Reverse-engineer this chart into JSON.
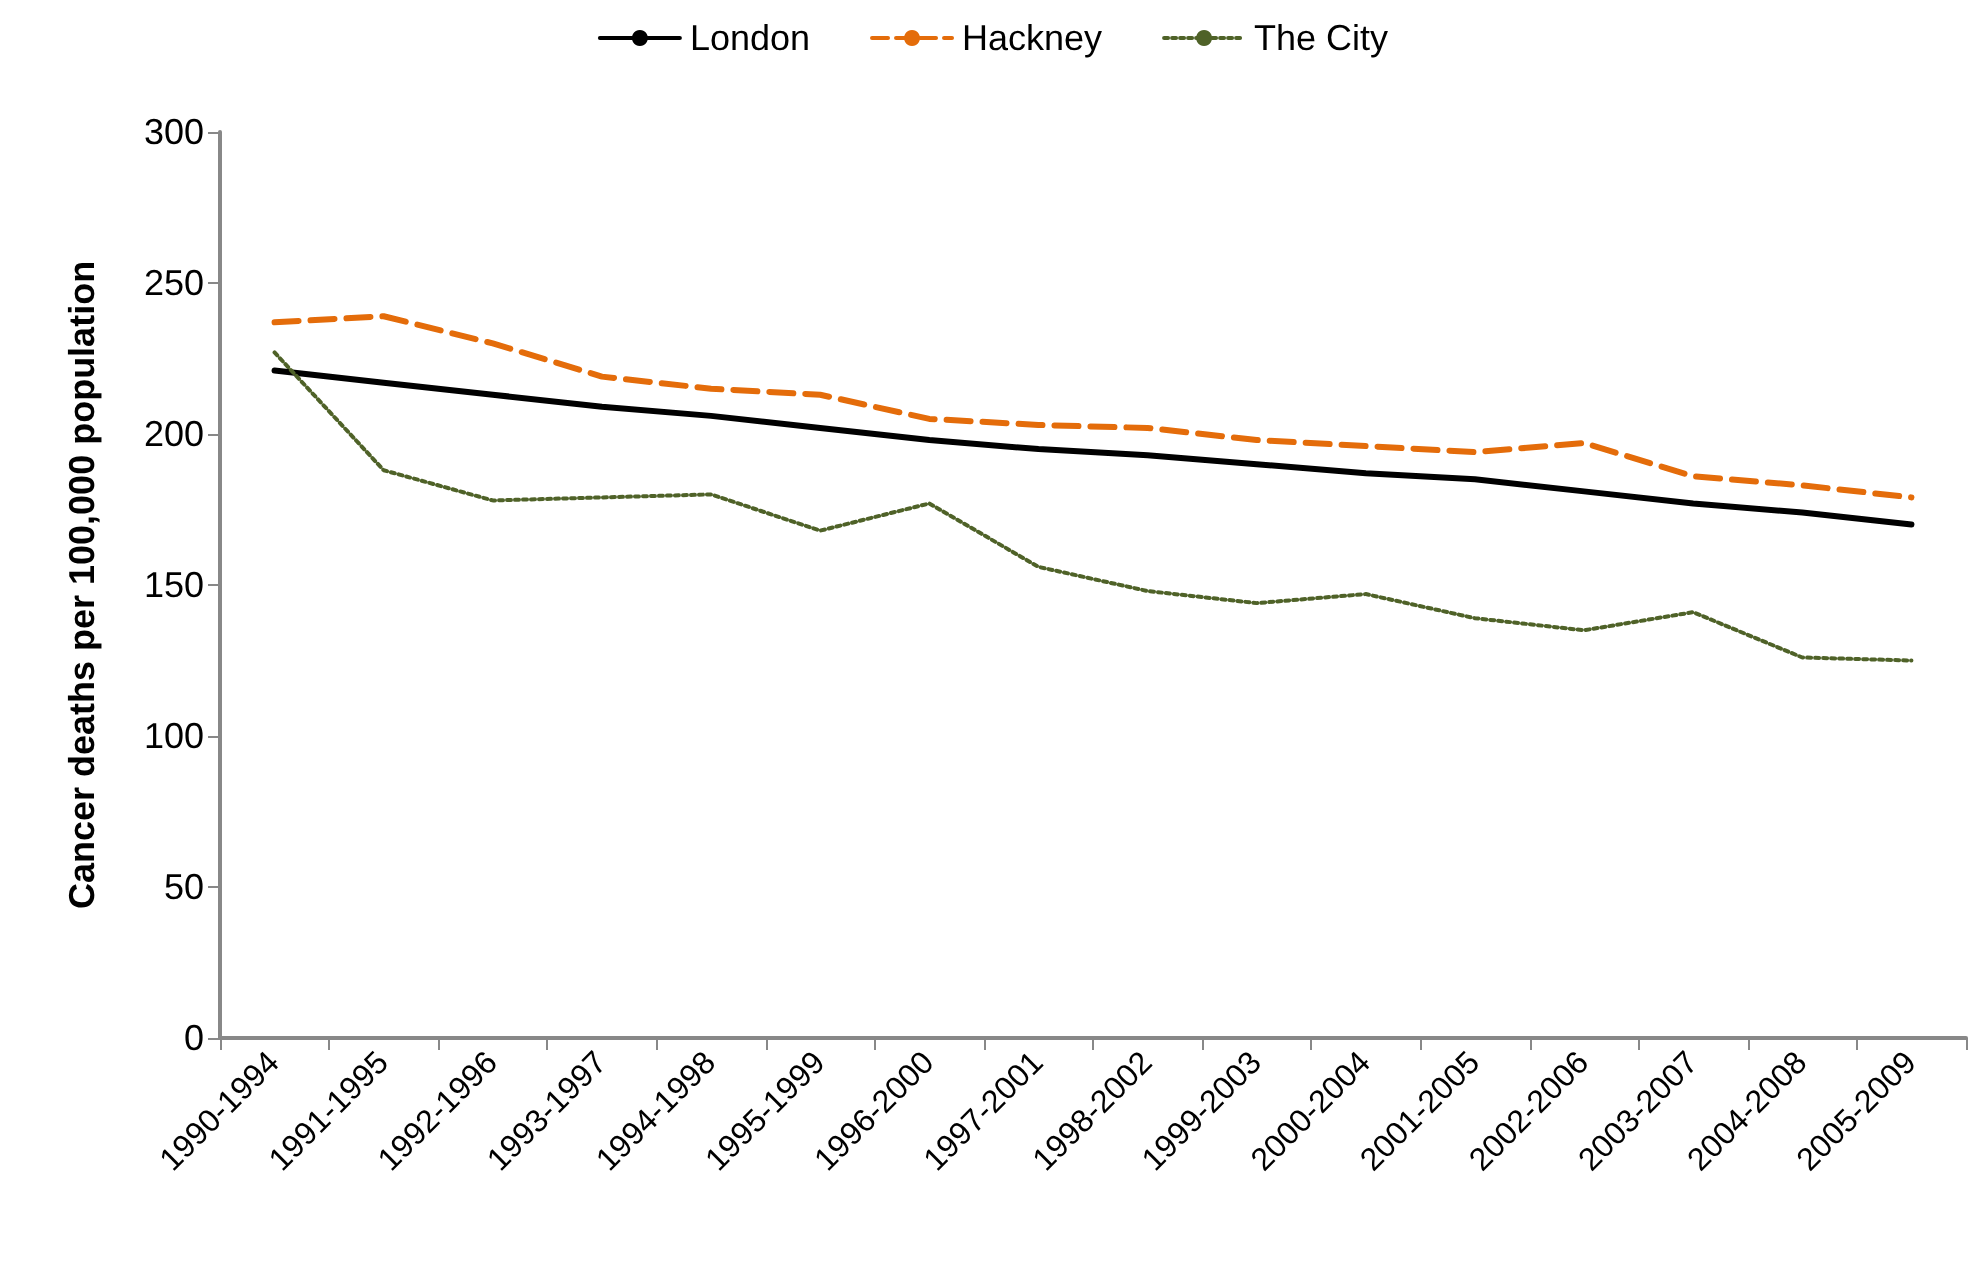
{
  "chart_data": {
    "type": "line",
    "ylabel": "Cancer deaths per 100,000 population",
    "categories": [
      "1990-1994",
      "1991-1995",
      "1992-1996",
      "1993-1997",
      "1994-1998",
      "1995-1999",
      "1996-2000",
      "1997-2001",
      "1998-2002",
      "1999-2003",
      "2000-2004",
      "2001-2005",
      "2002-2006",
      "2003-2007",
      "2004-2008",
      "2005-2009"
    ],
    "series": [
      {
        "name": "London",
        "color": "#000000",
        "line_style": "solid",
        "values": [
          221,
          217,
          213,
          209,
          206,
          202,
          198,
          195,
          193,
          190,
          187,
          185,
          181,
          177,
          174,
          170
        ]
      },
      {
        "name": "Hackney",
        "color": "#e46c0a",
        "line_style": "dashed",
        "values": [
          237,
          239,
          230,
          219,
          215,
          213,
          205,
          203,
          202,
          198,
          196,
          194,
          197,
          186,
          183,
          179
        ]
      },
      {
        "name": "The City",
        "color": "#4f6228",
        "line_style": "dotted",
        "values": [
          227,
          188,
          178,
          179,
          180,
          168,
          177,
          156,
          148,
          144,
          147,
          139,
          135,
          141,
          126,
          125
        ]
      }
    ],
    "ylim": [
      0,
      300
    ],
    "yticks": [
      0,
      50,
      100,
      150,
      200,
      250,
      300
    ],
    "grid": false,
    "legend": "top",
    "marker": "none"
  }
}
